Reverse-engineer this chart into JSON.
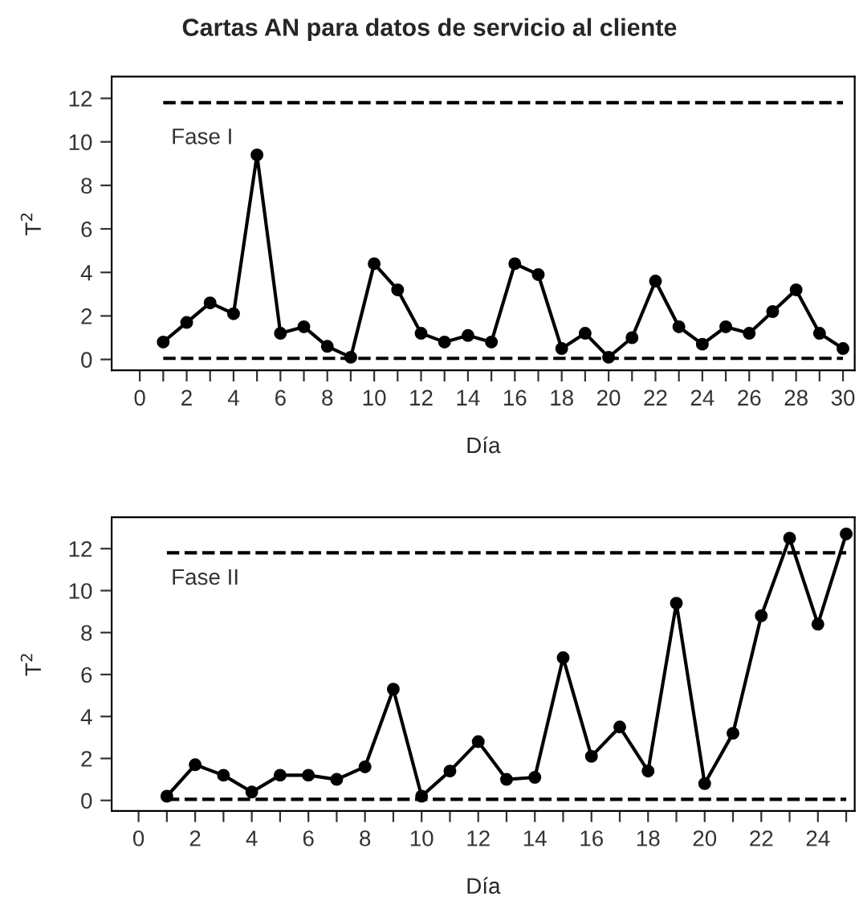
{
  "chart_data": [
    {
      "type": "line",
      "title": "Cartas AN para datos de servicio al cliente",
      "xlabel": "Día",
      "ylabel": "T$^{2}$",
      "x": [
        1,
        2,
        3,
        4,
        5,
        6,
        7,
        8,
        9,
        10,
        11,
        12,
        13,
        14,
        15,
        16,
        17,
        18,
        19,
        20,
        21,
        22,
        23,
        24,
        25,
        26,
        27,
        28,
        29,
        30
      ],
      "series": [
        {
          "color": "#000000",
          "values": [
            0.8,
            1.7,
            2.6,
            2.1,
            9.4,
            1.2,
            1.5,
            0.6,
            0.1,
            4.4,
            3.2,
            1.2,
            0.8,
            1.1,
            0.8,
            4.4,
            3.9,
            0.5,
            1.2,
            0.1,
            1.0,
            3.6,
            1.5,
            0.7,
            1.5,
            1.2,
            2.2,
            3.2,
            1.2,
            0.5
          ]
        }
      ],
      "marker": "circle",
      "line_style": "solid",
      "grid": false,
      "legend": false,
      "xlim": [
        -1.2,
        30.5
      ],
      "ylim": [
        -0.5,
        13.0
      ],
      "xticks": [
        0,
        {
          "value": 1,
          "label": null
        },
        2,
        {
          "value": 3,
          "label": null
        },
        4,
        {
          "value": 5,
          "label": null
        },
        6,
        {
          "value": 7,
          "label": null
        },
        8,
        {
          "value": 9,
          "label": null
        },
        10,
        {
          "value": 11,
          "label": null
        },
        12,
        {
          "value": 13,
          "label": null
        },
        14,
        {
          "value": 15,
          "label": null
        },
        16,
        {
          "value": 17,
          "label": null
        },
        18,
        {
          "value": 19,
          "label": null
        },
        20,
        {
          "value": 21,
          "label": null
        },
        22,
        {
          "value": 23,
          "label": null
        },
        24,
        {
          "value": 25,
          "label": null
        },
        26,
        {
          "value": 27,
          "label": null
        },
        28,
        {
          "value": 29,
          "label": null
        },
        30
      ],
      "yticks": [
        0,
        2,
        4,
        6,
        8,
        10,
        12
      ],
      "ref_lines": [
        {
          "axis": "y",
          "value": 11.8,
          "line_style": "dashed",
          "color": "#000000"
        },
        {
          "axis": "y",
          "value": 0.05,
          "line_style": "dashed",
          "color": "#000000"
        }
      ],
      "annotations": [
        "Fase I"
      ]
    },
    {
      "type": "line",
      "xlabel": "Día",
      "ylabel": "T$^{2}$",
      "x": [
        1,
        2,
        3,
        4,
        5,
        6,
        7,
        8,
        9,
        10,
        11,
        12,
        13,
        14,
        15,
        16,
        17,
        18,
        19,
        20,
        21,
        22,
        23,
        24,
        25
      ],
      "series": [
        {
          "color": "#000000",
          "values": [
            0.2,
            1.7,
            1.2,
            0.4,
            1.2,
            1.2,
            1.0,
            1.6,
            5.3,
            0.2,
            1.4,
            2.8,
            1.0,
            1.1,
            6.8,
            2.1,
            3.5,
            1.4,
            9.4,
            0.8,
            3.2,
            8.8,
            12.5,
            8.4,
            12.7
          ]
        }
      ],
      "marker": "circle",
      "line_style": "solid",
      "grid": false,
      "legend": false,
      "xlim": [
        -0.95,
        25.3
      ],
      "ylim": [
        -0.5,
        13.5
      ],
      "xticks": [
        0,
        {
          "value": 1,
          "label": null
        },
        2,
        {
          "value": 3,
          "label": null
        },
        4,
        {
          "value": 5,
          "label": null
        },
        6,
        {
          "value": 7,
          "label": null
        },
        8,
        {
          "value": 9,
          "label": null
        },
        10,
        {
          "value": 11,
          "label": null
        },
        12,
        {
          "value": 13,
          "label": null
        },
        14,
        {
          "value": 15,
          "label": null
        },
        16,
        {
          "value": 17,
          "label": null
        },
        18,
        {
          "value": 19,
          "label": null
        },
        20,
        {
          "value": 21,
          "label": null
        },
        22,
        {
          "value": 23,
          "label": null
        },
        24,
        {
          "value": 25,
          "label": null
        }
      ],
      "yticks": [
        0,
        2,
        4,
        6,
        8,
        10,
        12
      ],
      "ref_lines": [
        {
          "axis": "y",
          "value": 11.8,
          "line_style": "dashed",
          "color": "#000000"
        },
        {
          "axis": "y",
          "value": 0.05,
          "line_style": "dashed",
          "color": "#000000"
        }
      ],
      "annotations": [
        "Fase II"
      ]
    }
  ]
}
